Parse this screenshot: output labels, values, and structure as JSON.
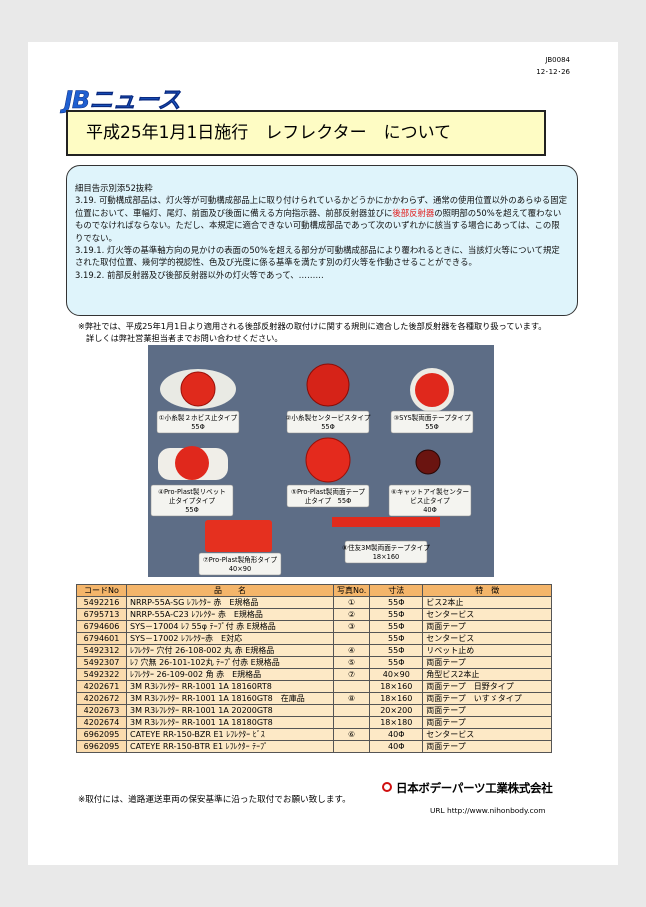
{
  "header": {
    "doc_id": "JB0084",
    "date": "12･12･26",
    "logo": "JBニュース",
    "title": "平成25年1月1日施行　レフレクター　について"
  },
  "regulation": {
    "heading": "細目告示別添52抜粋",
    "paragraph_1": {
      "before": "3.19. 可動構成部品は、灯火等が可動構成部品上に取り付けられているかどうかにかかわらず、通常の使用位置以外のあらゆる固定位置において、車幅灯、尾灯、前面及び後面に備える方向指示器、前部反射器並びに",
      "highlight": "後部反射器",
      "after": "の照明部の50%を超えて覆わないものでなければならない。ただし、本規定に適合できない可動構成部品であって次のいずれかに該当する場合にあっては、この限りでない。"
    },
    "paragraph_2": "3.19.1.  灯火等の基準軸方向の見かけの表面の50%を超える部分が可動構成部品により覆われるときに、当該灯火等について規定された取付位置、幾何学的視認性、色及び光度に係る基準を満たす別の灯火等を作動させることができる。",
    "paragraph_3": "3.19.2.  前部反射器及び後部反射器以外の灯火等であって、………"
  },
  "note": [
    "※弊社では、平成25年1月1日より適用される後部反射器の取付けに関する規則に適合した後部反射器を各種取り扱っています。",
    "詳しくは弊社営業担当者までお問い合わせください。"
  ],
  "photo_labels": [
    [
      "①小糸製２ホビス止タイプ",
      "55Φ"
    ],
    [
      "②小糸製センタービスタイプ",
      "55Φ"
    ],
    [
      "③SYS製両面テープタイプ",
      "55Φ"
    ],
    [
      "④Pro-Plast製リベット",
      "止タイプタイプ",
      "55Φ"
    ],
    [
      "⑤Pro-Plast製両面テープ",
      "止タイプ　55Φ"
    ],
    [
      "⑥キャットアイ製センター",
      "ビス止タイプ",
      "40Φ"
    ],
    [
      "⑦Pro-Plast製角形タイプ",
      "40×90"
    ],
    [
      "⑧住友3M製両面テープタイプ",
      "18×160"
    ]
  ],
  "table": {
    "header": [
      "コードNo",
      "品　　名",
      "写真No.",
      "寸法",
      "特　徴"
    ],
    "rows": [
      [
        "5492216",
        "NRRP-55A-SG ﾚﾌﾚｸﾀｰ 赤　E規格品",
        "①",
        "55Φ",
        "ビス2本止"
      ],
      [
        "6795713",
        "NRRP-55A-C23 ﾚﾌﾚｸﾀｰ 赤　E規格品",
        "②",
        "55Φ",
        "センタービス"
      ],
      [
        "6794606",
        "SYS－17004 ﾚﾌ 55φ ﾃｰﾌﾟ付 赤 E規格品",
        "③",
        "55Φ",
        "両面テープ"
      ],
      [
        "6794601",
        "SYS－17002 ﾚﾌﾚｸﾀｰ赤　E対応",
        null,
        "55Φ",
        "センタービス"
      ],
      [
        "5492312",
        "ﾚﾌﾚｸﾀｰ 穴付 26-108-002 丸 赤 E規格品",
        "④",
        "55Φ",
        "リベット止め"
      ],
      [
        "5492307",
        "ﾚﾌ 穴無 26-101-102丸 ﾃｰﾌﾟ付赤 E規格品",
        "⑤",
        "55Φ",
        "両面テープ"
      ],
      [
        "5492322",
        "ﾚﾌﾚｸﾀｰ 26-109-002 角 赤　E規格品",
        "⑦",
        "40×90",
        "角型ビス2本止"
      ],
      [
        "4202671",
        "3M R3ﾚﾌﾚｸﾀｰ RR-1001 1A 18160RT8",
        null,
        "18×160",
        "両面テープ　日野タイプ"
      ],
      [
        "4202672",
        "3M R3ﾚﾌﾚｸﾀｰ RR-1001 1A 18160GT8　在庫品",
        "⑧",
        "18×160",
        "両面テープ　いすゞタイプ"
      ],
      [
        "4202673",
        "3M R3ﾚﾌﾚｸﾀｰ RR-1001 1A 20200GT8",
        null,
        "20×200",
        "両面テープ"
      ],
      [
        "4202674",
        "3M R3ﾚﾌﾚｸﾀｰ RR-1001 1A 18180GT8",
        null,
        "18×180",
        "両面テープ"
      ],
      [
        "6962095",
        "CATEYE RR-150-BZR E1 ﾚﾌﾚｸﾀｰ ﾋﾞｽ",
        "⑥",
        "40Φ",
        "センタービス"
      ],
      [
        "6962095",
        "CATEYE RR-150-BTR E1 ﾚﾌﾚｸﾀｰ ﾃｰﾌﾟ",
        null,
        "40Φ",
        "両面テープ"
      ]
    ]
  },
  "footer": {
    "note": "※取付には、道路運送車両の保安基準に沿った取付でお願い致します。",
    "company": "日本ボデーパーツ工業株式会社",
    "url": "URL  http://www.nihonbody.com"
  }
}
